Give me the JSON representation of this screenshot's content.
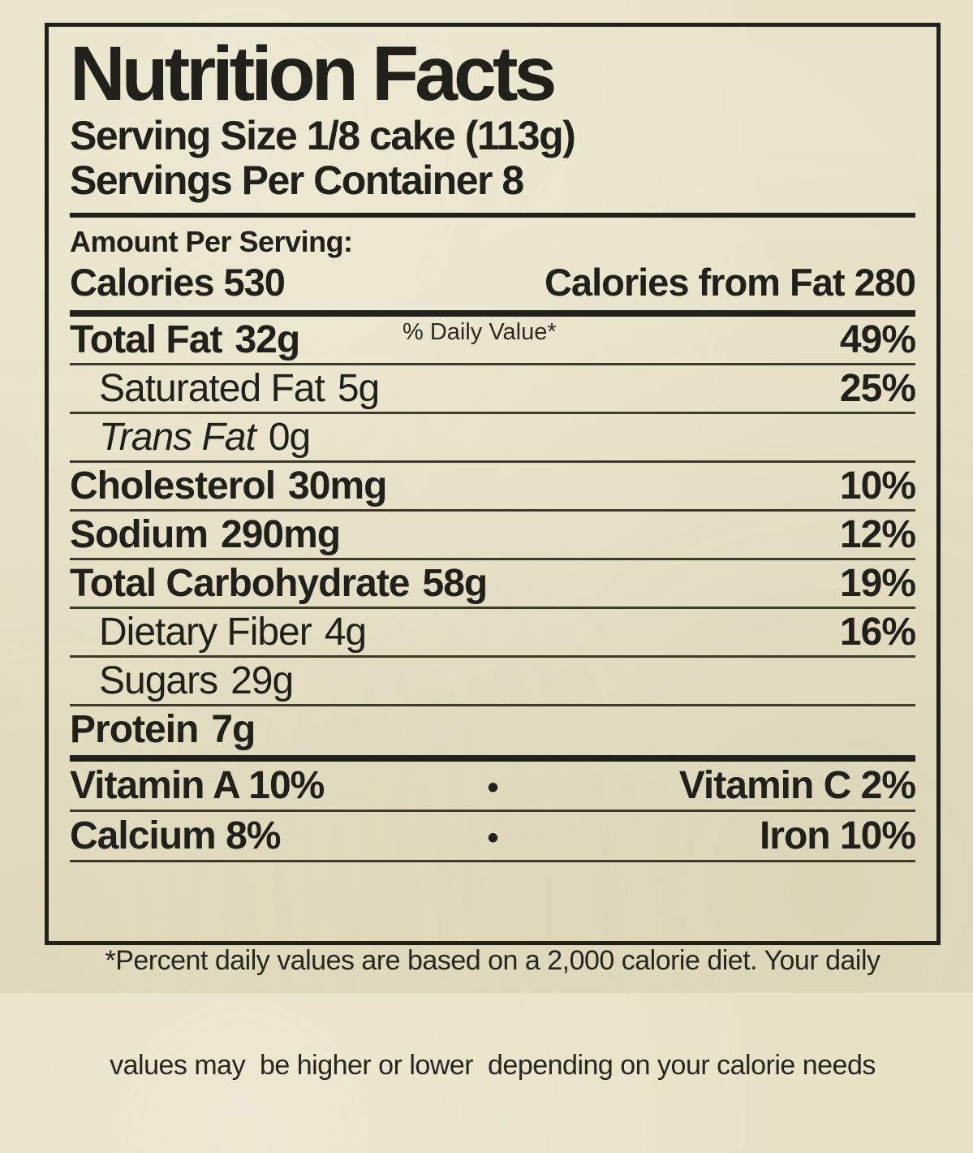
{
  "colors": {
    "background": "#e8e2c7",
    "ink": "#21201a"
  },
  "label": {
    "title": "Nutrition Facts",
    "serving_size": "Serving Size 1/8 cake (113g)",
    "servings_per_container": "Servings Per Container 8",
    "amount_per_serving": "Amount Per Serving:",
    "calories": "Calories 530",
    "calories_from_fat": "Calories from Fat 280",
    "daily_value_header": "% Daily Value*",
    "nutrients": [
      {
        "name": "Total Fat",
        "amount": "32g",
        "dv": "49%"
      },
      {
        "name": "Saturated Fat",
        "amount": "5g",
        "dv": "25%"
      },
      {
        "name": "Trans Fat",
        "amount": "0g",
        "dv": ""
      },
      {
        "name": "Cholesterol",
        "amount": "30mg",
        "dv": "10%"
      },
      {
        "name": "Sodium",
        "amount": "290mg",
        "dv": "12%"
      },
      {
        "name": "Total Carbohydrate",
        "amount": "58g",
        "dv": "19%"
      },
      {
        "name": "Dietary Fiber",
        "amount": "4g",
        "dv": "16%"
      },
      {
        "name": "Sugars",
        "amount": "29g",
        "dv": ""
      },
      {
        "name": "Protein",
        "amount": "7g",
        "dv": ""
      }
    ],
    "vitamins": {
      "bullet": "•",
      "row1_left": "Vitamin A 10%",
      "row1_right": "Vitamin C 2%",
      "row2_left": "Calcium 8%",
      "row2_right": "Iron 10%"
    },
    "footnote_line1": "*Percent daily values are based on a 2,000 calorie diet. Your daily",
    "footnote_line2": "values may  be higher or lower  depending on your calorie needs"
  }
}
